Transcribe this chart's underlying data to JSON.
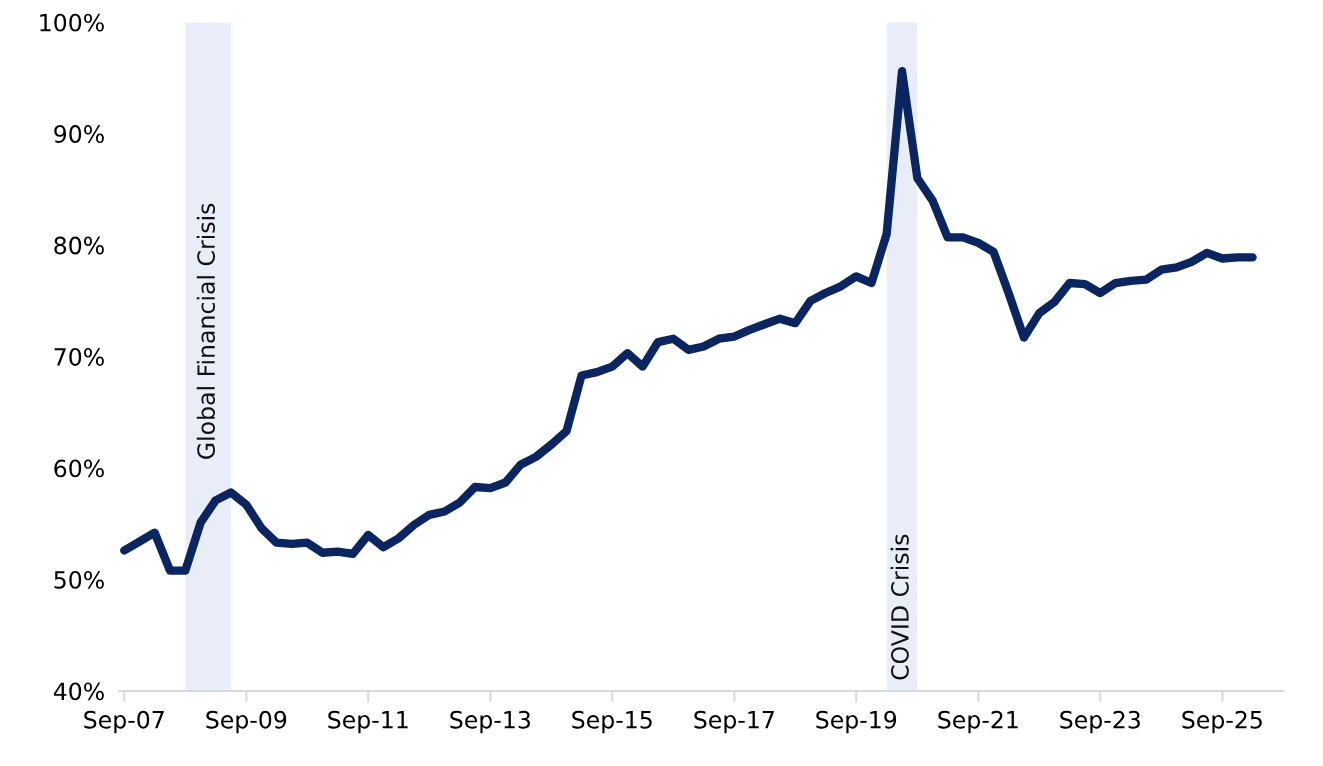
{
  "chart_data": {
    "type": "line",
    "x": [
      "2007-09",
      "2007-12",
      "2008-03",
      "2008-06",
      "2008-09",
      "2008-12",
      "2009-03",
      "2009-06",
      "2009-09",
      "2009-12",
      "2010-03",
      "2010-06",
      "2010-09",
      "2010-12",
      "2011-03",
      "2011-06",
      "2011-09",
      "2011-12",
      "2012-03",
      "2012-06",
      "2012-09",
      "2012-12",
      "2013-03",
      "2013-06",
      "2013-09",
      "2013-12",
      "2014-03",
      "2014-06",
      "2014-09",
      "2014-12",
      "2015-03",
      "2015-06",
      "2015-09",
      "2015-12",
      "2016-03",
      "2016-06",
      "2016-09",
      "2016-12",
      "2017-03",
      "2017-06",
      "2017-09",
      "2017-12",
      "2018-03",
      "2018-06",
      "2018-09",
      "2018-12",
      "2019-03",
      "2019-06",
      "2019-09",
      "2019-12",
      "2020-03",
      "2020-06",
      "2020-09",
      "2020-12",
      "2021-03",
      "2021-06",
      "2021-09",
      "2021-12",
      "2022-03",
      "2022-06",
      "2022-09",
      "2022-12",
      "2023-03",
      "2023-06",
      "2023-09",
      "2023-12",
      "2024-03",
      "2024-06",
      "2024-09",
      "2024-12",
      "2025-03",
      "2025-06",
      "2025-09",
      "2025-12",
      "2026-03"
    ],
    "series": [
      {
        "color": "#0b2560",
        "values": [
          52.6,
          53.4,
          54.2,
          50.8,
          50.8,
          55.1,
          57.1,
          57.8,
          56.7,
          54.6,
          53.3,
          53.2,
          53.3,
          52.4,
          52.5,
          52.3,
          54.0,
          52.9,
          53.7,
          54.9,
          55.8,
          56.1,
          56.9,
          58.3,
          58.2,
          58.7,
          60.3,
          61.0,
          62.1,
          63.3,
          68.3,
          68.6,
          69.1,
          70.3,
          69.1,
          71.3,
          71.6,
          70.6,
          70.9,
          71.6,
          71.8,
          72.4,
          72.9,
          73.4,
          73.0,
          75.0,
          75.7,
          76.3,
          77.2,
          76.6,
          81.0,
          95.6,
          86.0,
          84.0,
          80.7,
          80.7,
          80.2,
          79.4,
          75.7,
          71.7,
          73.9,
          74.9,
          76.6,
          76.5,
          75.7,
          76.6,
          76.8,
          76.9,
          77.8,
          78.0,
          78.5,
          79.3,
          78.8,
          78.9,
          78.9
        ]
      }
    ],
    "xlim": [
      "2007-08",
      "2026-09"
    ],
    "xticks": [
      {
        "value": "2007-09",
        "label": "Sep-07"
      },
      {
        "value": "2009-09",
        "label": "Sep-09"
      },
      {
        "value": "2011-09",
        "label": "Sep-11"
      },
      {
        "value": "2013-09",
        "label": "Sep-13"
      },
      {
        "value": "2015-09",
        "label": "Sep-15"
      },
      {
        "value": "2017-09",
        "label": "Sep-17"
      },
      {
        "value": "2019-09",
        "label": "Sep-19"
      },
      {
        "value": "2021-09",
        "label": "Sep-21"
      },
      {
        "value": "2023-09",
        "label": "Sep-23"
      },
      {
        "value": "2025-09",
        "label": "Sep-25"
      }
    ],
    "ylim": [
      40,
      100
    ],
    "yticks": [
      {
        "value": 40,
        "label": "40%"
      },
      {
        "value": 50,
        "label": "50%"
      },
      {
        "value": 60,
        "label": "60%"
      },
      {
        "value": 70,
        "label": "70%"
      },
      {
        "value": 80,
        "label": "80%"
      },
      {
        "value": 90,
        "label": "90%"
      },
      {
        "value": 100,
        "label": "100%"
      }
    ],
    "bands": [
      {
        "axis": "x",
        "from": "2008-09",
        "to": "2009-06",
        "label": "Global Financial Crisis",
        "color": "#e8edf8"
      },
      {
        "axis": "x",
        "from": "2020-03",
        "to": "2020-09",
        "label": "COVID Crisis",
        "color": "#e8edf8"
      }
    ],
    "grid": false,
    "marker": "none",
    "line_style": "solid"
  }
}
